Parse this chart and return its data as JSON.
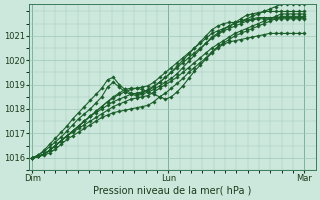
{
  "background_color": "#cce8dc",
  "grid_color": "#a0c8b8",
  "line_color": "#1a5e2a",
  "xlabel": "Pression niveau de la mer( hPa )",
  "ylim": [
    1015.5,
    1022.3
  ],
  "yticks": [
    1016,
    1017,
    1018,
    1019,
    1020,
    1021
  ],
  "xtick_labels": [
    "Dim",
    "Lun",
    "Mar"
  ],
  "xtick_positions": [
    0,
    48,
    96
  ],
  "series": [
    [
      1016.0,
      1016.05,
      1016.15,
      1016.3,
      1016.5,
      1016.7,
      1016.9,
      1017.1,
      1017.3,
      1017.5,
      1017.7,
      1017.9,
      1018.1,
      1018.3,
      1018.45,
      1018.6,
      1018.7,
      1018.8,
      1018.85,
      1018.9,
      1018.95,
      1019.1,
      1019.3,
      1019.5,
      1019.7,
      1019.9,
      1020.1,
      1020.3,
      1020.5,
      1020.7,
      1020.9,
      1021.1,
      1021.2,
      1021.3,
      1021.4,
      1021.5,
      1021.6,
      1021.7,
      1021.8,
      1021.9,
      1022.0,
      1022.1,
      1022.2,
      1022.3,
      1022.3,
      1022.3,
      1022.3,
      1022.3
    ],
    [
      1016.0,
      1016.05,
      1016.15,
      1016.3,
      1016.5,
      1016.7,
      1016.9,
      1017.05,
      1017.2,
      1017.35,
      1017.5,
      1017.65,
      1017.8,
      1017.95,
      1018.1,
      1018.2,
      1018.3,
      1018.4,
      1018.45,
      1018.5,
      1018.55,
      1018.7,
      1018.85,
      1019.0,
      1019.15,
      1019.3,
      1019.5,
      1019.7,
      1019.9,
      1020.1,
      1020.3,
      1020.5,
      1020.65,
      1020.8,
      1020.95,
      1021.1,
      1021.2,
      1021.3,
      1021.4,
      1021.5,
      1021.6,
      1021.7,
      1021.8,
      1021.9,
      1021.9,
      1021.9,
      1021.9,
      1021.9
    ],
    [
      1016.0,
      1016.05,
      1016.1,
      1016.2,
      1016.35,
      1016.55,
      1016.75,
      1016.9,
      1017.05,
      1017.2,
      1017.35,
      1017.5,
      1017.65,
      1017.75,
      1017.85,
      1017.9,
      1017.95,
      1018.0,
      1018.05,
      1018.1,
      1018.15,
      1018.3,
      1018.5,
      1018.65,
      1018.85,
      1019.05,
      1019.25,
      1019.5,
      1019.7,
      1019.9,
      1020.1,
      1020.35,
      1020.55,
      1020.7,
      1020.85,
      1021.0,
      1021.1,
      1021.2,
      1021.3,
      1021.4,
      1021.5,
      1021.6,
      1021.7,
      1021.8,
      1021.8,
      1021.8,
      1021.8,
      1021.8
    ],
    [
      1016.0,
      1016.1,
      1016.25,
      1016.45,
      1016.65,
      1016.85,
      1017.1,
      1017.35,
      1017.6,
      1017.8,
      1018.0,
      1018.25,
      1018.5,
      1018.9,
      1019.1,
      1018.9,
      1018.7,
      1018.6,
      1018.55,
      1018.6,
      1018.7,
      1018.8,
      1018.95,
      1019.1,
      1019.25,
      1019.45,
      1019.7,
      1019.95,
      1020.2,
      1020.45,
      1020.7,
      1020.95,
      1021.1,
      1021.25,
      1021.4,
      1021.55,
      1021.7,
      1021.85,
      1021.9,
      1021.95,
      1022.0,
      1022.0,
      1022.0,
      1022.0,
      1022.0,
      1022.0,
      1022.0,
      1022.0
    ],
    [
      1016.0,
      1016.1,
      1016.3,
      1016.55,
      1016.8,
      1017.05,
      1017.3,
      1017.6,
      1017.85,
      1018.1,
      1018.35,
      1018.6,
      1018.85,
      1019.2,
      1019.3,
      1019.0,
      1018.8,
      1018.65,
      1018.6,
      1018.65,
      1018.8,
      1018.95,
      1019.1,
      1019.3,
      1019.5,
      1019.75,
      1020.0,
      1020.25,
      1020.5,
      1020.75,
      1021.0,
      1021.25,
      1021.4,
      1021.5,
      1021.55,
      1021.55,
      1021.6,
      1021.65,
      1021.7,
      1021.75,
      1021.75,
      1021.75,
      1021.75,
      1021.75,
      1021.75,
      1021.75,
      1021.75,
      1021.75
    ],
    [
      1016.0,
      1016.05,
      1016.15,
      1016.3,
      1016.5,
      1016.7,
      1016.9,
      1017.1,
      1017.3,
      1017.5,
      1017.7,
      1017.9,
      1018.1,
      1018.3,
      1018.5,
      1018.65,
      1018.8,
      1018.85,
      1018.85,
      1018.8,
      1018.7,
      1018.6,
      1018.5,
      1018.4,
      1018.5,
      1018.7,
      1018.95,
      1019.25,
      1019.55,
      1019.8,
      1020.05,
      1020.3,
      1020.5,
      1020.65,
      1020.75,
      1020.8,
      1020.85,
      1020.9,
      1020.95,
      1021.0,
      1021.05,
      1021.1,
      1021.1,
      1021.1,
      1021.1,
      1021.1,
      1021.1,
      1021.1
    ],
    [
      1016.0,
      1016.05,
      1016.15,
      1016.3,
      1016.5,
      1016.7,
      1016.9,
      1017.1,
      1017.3,
      1017.5,
      1017.7,
      1017.85,
      1018.0,
      1018.15,
      1018.3,
      1018.4,
      1018.5,
      1018.6,
      1018.65,
      1018.7,
      1018.75,
      1018.9,
      1019.1,
      1019.3,
      1019.5,
      1019.7,
      1019.9,
      1020.1,
      1020.3,
      1020.5,
      1020.7,
      1020.9,
      1021.05,
      1021.2,
      1021.3,
      1021.4,
      1021.5,
      1021.6,
      1021.65,
      1021.7,
      1021.7,
      1021.7,
      1021.7,
      1021.7,
      1021.7,
      1021.7,
      1021.7,
      1021.7
    ]
  ],
  "n_points": 48,
  "marker": "D",
  "markersize": 1.8,
  "linewidth": 0.8,
  "tick_fontsize": 6.0,
  "xlabel_fontsize": 7.0
}
